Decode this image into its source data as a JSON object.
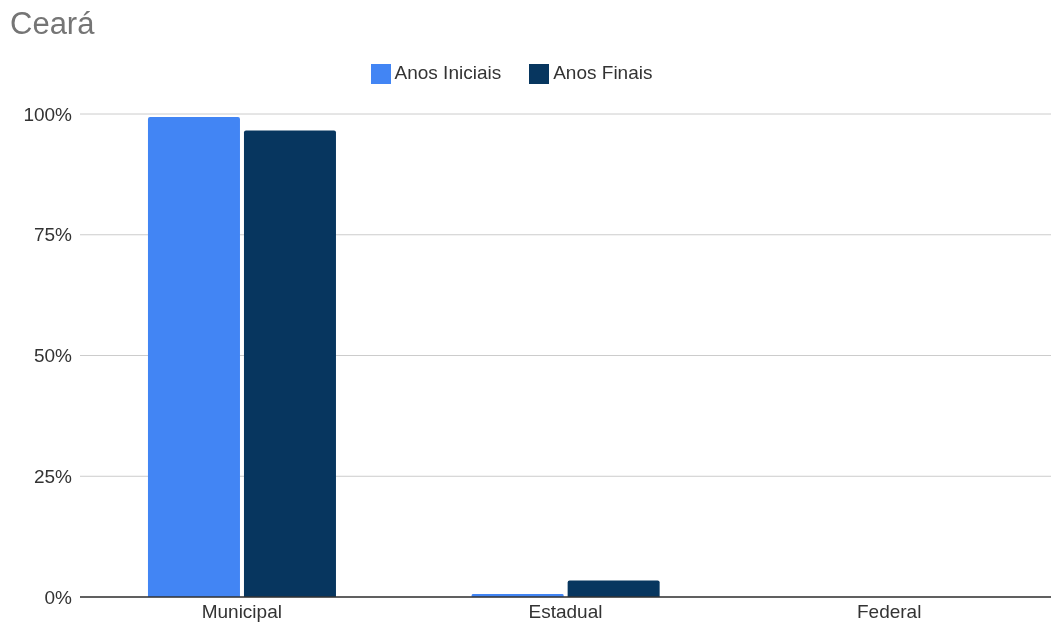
{
  "chart_data": {
    "type": "bar",
    "title": "Ceará",
    "categories": [
      "Municipal",
      "Estadual",
      "Federal"
    ],
    "series": [
      {
        "name": "Anos Iniciais",
        "color": "#4285f4",
        "values": [
          99.4,
          0.6,
          0
        ]
      },
      {
        "name": "Anos Finais",
        "color": "#07365f",
        "values": [
          96.6,
          3.4,
          0
        ]
      }
    ],
    "ylim": [
      0,
      100
    ],
    "yticks": [
      {
        "value": 0,
        "label": "0%"
      },
      {
        "value": 25,
        "label": "25%"
      },
      {
        "value": 50,
        "label": "50%"
      },
      {
        "value": 75,
        "label": "75%"
      },
      {
        "value": 100,
        "label": "100%"
      }
    ],
    "grid": "y",
    "legend": "top"
  }
}
